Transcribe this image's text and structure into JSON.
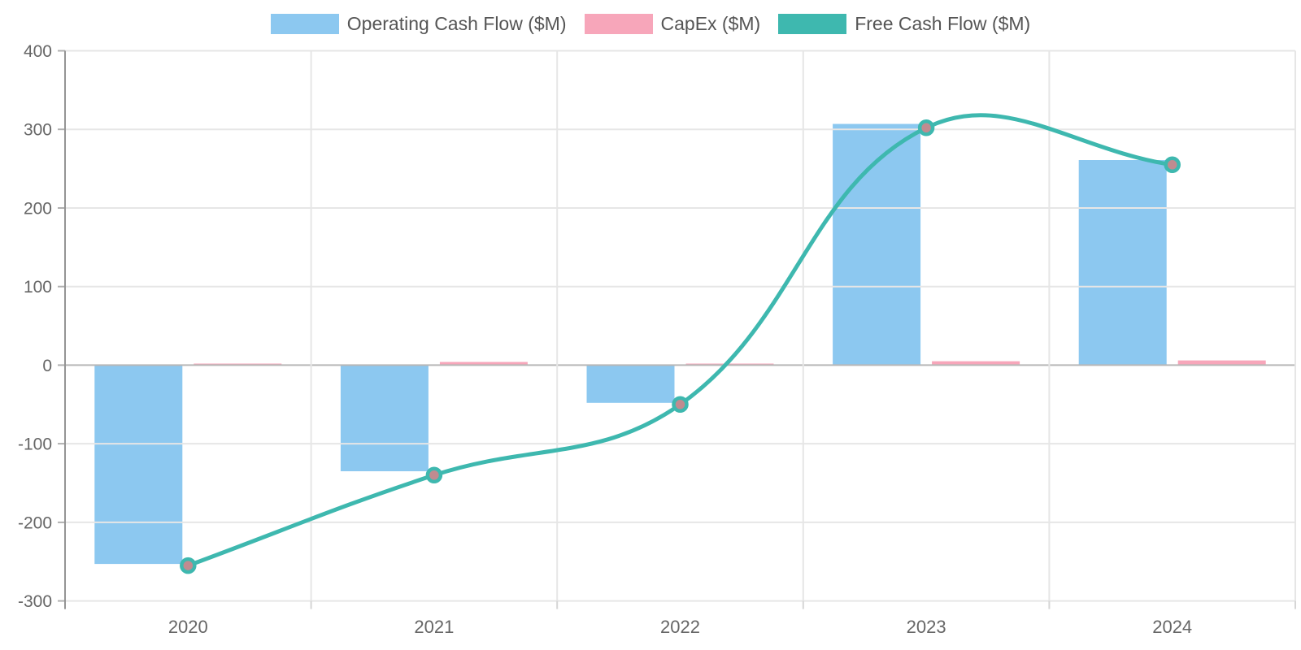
{
  "chart_data": {
    "type": "combo",
    "categories": [
      "2020",
      "2021",
      "2022",
      "2023",
      "2024"
    ],
    "series": [
      {
        "name": "Operating Cash Flow ($M)",
        "type": "bar",
        "color": "#8CC8F0",
        "values": [
          -253,
          -135,
          -48,
          307,
          261
        ]
      },
      {
        "name": "CapEx ($M)",
        "type": "bar",
        "color": "#F7A6BA",
        "values": [
          2,
          4,
          2,
          5,
          6
        ]
      },
      {
        "name": "Free Cash Flow ($M)",
        "type": "line",
        "color": "#3EB8AF",
        "point_fill": "#C08B90",
        "line_tension": 0.4,
        "values": [
          -255,
          -140,
          -50,
          302,
          255
        ]
      }
    ],
    "ylim": [
      -300,
      400
    ],
    "y_tick_labels": [
      "400",
      "300",
      "200",
      "100",
      "0",
      "-100",
      "-200",
      "-300"
    ],
    "x_tick_labels": [
      "2020",
      "2021",
      "2022",
      "2023",
      "2024"
    ],
    "grid": true,
    "legend_position": "top"
  },
  "colors": {
    "grid_line": "#e6e6e6",
    "zero_line": "#b8b8b8",
    "axis_border": "#949494",
    "y_tick_mark": "#b0b0b0",
    "x_tick_mark": "#d6d6d6",
    "tick_text": "#666666",
    "legend_text": "#555555",
    "background": "#ffffff"
  }
}
